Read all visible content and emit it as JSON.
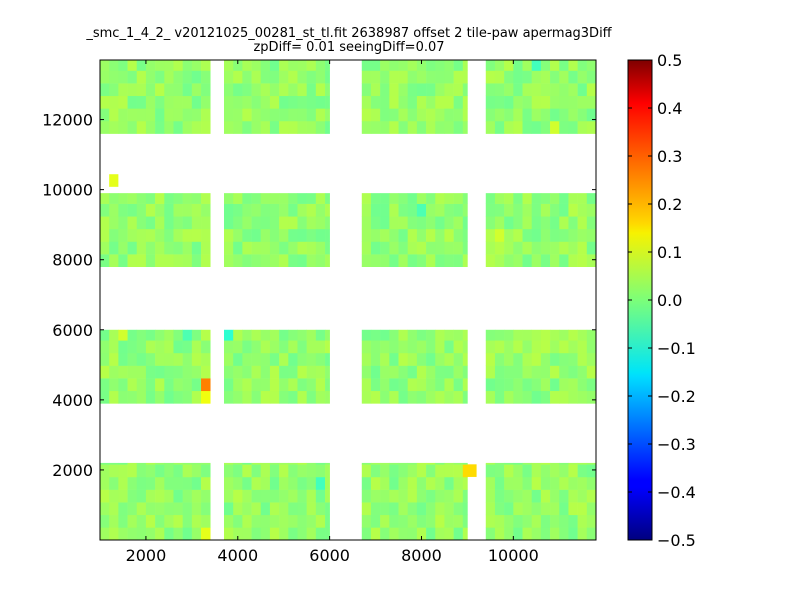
{
  "chart_data": {
    "type": "heatmap",
    "title_lines": [
      "_smc_1_4_2_ v20121025_00281_st_tl.fit 2638987 offset 2 tile-paw apermag3Diff",
      "zpDiff= 0.01 seeingDiff=0.07"
    ],
    "xlabel": "",
    "ylabel": "",
    "xlim": [
      1000,
      11800
    ],
    "ylim": [
      0,
      13700
    ],
    "xticks": [
      "2000",
      "4000",
      "6000",
      "8000",
      "10000"
    ],
    "yticks": [
      "2000",
      "4000",
      "6000",
      "8000",
      "10000",
      "12000"
    ],
    "colorbar": {
      "colormap": "jet",
      "vmin": -0.5,
      "vmax": 0.5,
      "ticks": [
        "0.5",
        "0.4",
        "0.3",
        "0.2",
        "0.1",
        "0.0",
        "−0.1",
        "−0.2",
        "−0.3",
        "−0.4",
        "−0.5"
      ]
    },
    "cell_size": [
      200,
      360
    ],
    "detector_columns": [
      {
        "x0": 1000,
        "x1": 3000,
        "rows": 5
      },
      {
        "x0": 3000,
        "x1": 3400,
        "rows": 5
      },
      {
        "x0": 3700,
        "x1": 6000,
        "rows": 5
      },
      {
        "x0": 6700,
        "x1": 9000,
        "rows": 5
      },
      {
        "x0": 9400,
        "x1": 11800,
        "rows": 5
      }
    ],
    "detector_rows": [
      {
        "y0": 0,
        "y1": 2200
      },
      {
        "y0": 3900,
        "y1": 6000
      },
      {
        "y0": 7800,
        "y1": 9900
      },
      {
        "y0": 11600,
        "y1": 13700
      }
    ],
    "base_value": 0.02,
    "highlight_cells": [
      {
        "x": 1200,
        "y": 10100,
        "value": 0.1
      },
      {
        "x": 3200,
        "y": 4400,
        "value": 0.25
      },
      {
        "x": 3200,
        "y": 4050,
        "value": 0.11
      },
      {
        "x": 9000,
        "y": 1950,
        "value": 0.16
      },
      {
        "x": 3200,
        "y": 250,
        "value": 0.1
      },
      {
        "x": 9600,
        "y": 8750,
        "value": 0.08
      },
      {
        "x": 10800,
        "y": 11850,
        "value": 0.08
      },
      {
        "x": 1400,
        "y": 5850,
        "value": 0.08
      },
      {
        "x": 8000,
        "y": 9500,
        "value": -0.05
      },
      {
        "x": 3800,
        "y": 5850,
        "value": -0.08
      },
      {
        "x": 5800,
        "y": 1600,
        "value": -0.06
      },
      {
        "x": 10400,
        "y": 13550,
        "value": -0.06
      },
      {
        "x": 2800,
        "y": 5850,
        "value": -0.05
      }
    ]
  }
}
